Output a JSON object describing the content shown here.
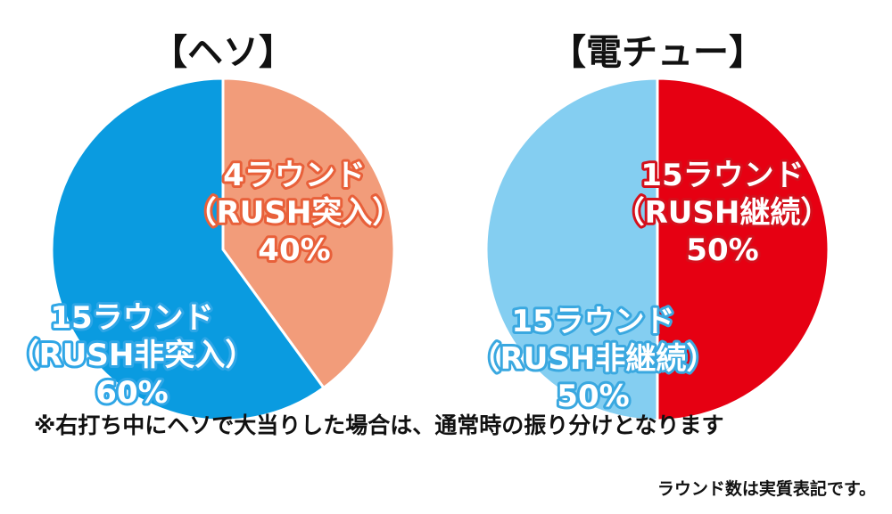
{
  "chart_data": [
    {
      "type": "pie",
      "title": "【ヘソ】",
      "slices": [
        {
          "label_lines": [
            "4ラウンド",
            "（RUSH突入）",
            "40%"
          ],
          "value": 40,
          "color": "#f29c7a",
          "outline": "#e8603a"
        },
        {
          "label_lines": [
            "15ラウンド",
            "（RUSH非突入）",
            "60%"
          ],
          "value": 60,
          "color": "#0a9be0",
          "outline": "#2fa6e6"
        }
      ]
    },
    {
      "type": "pie",
      "title": "【電チュー】",
      "slices": [
        {
          "label_lines": [
            "15ラウンド",
            "（RUSH継続）",
            "50%"
          ],
          "value": 50,
          "color": "#e60012",
          "outline": "#d4101c"
        },
        {
          "label_lines": [
            "15ラウンド",
            "（RUSH非継続）",
            "50%"
          ],
          "value": 50,
          "color": "#84cef1",
          "outline": "#3aa8e0"
        }
      ]
    }
  ],
  "notes": {
    "main": "※右打ち中にヘソで大当りした場合は、通常時の振り分けとなります",
    "sub": "ラウンド数は実質表記です。"
  }
}
